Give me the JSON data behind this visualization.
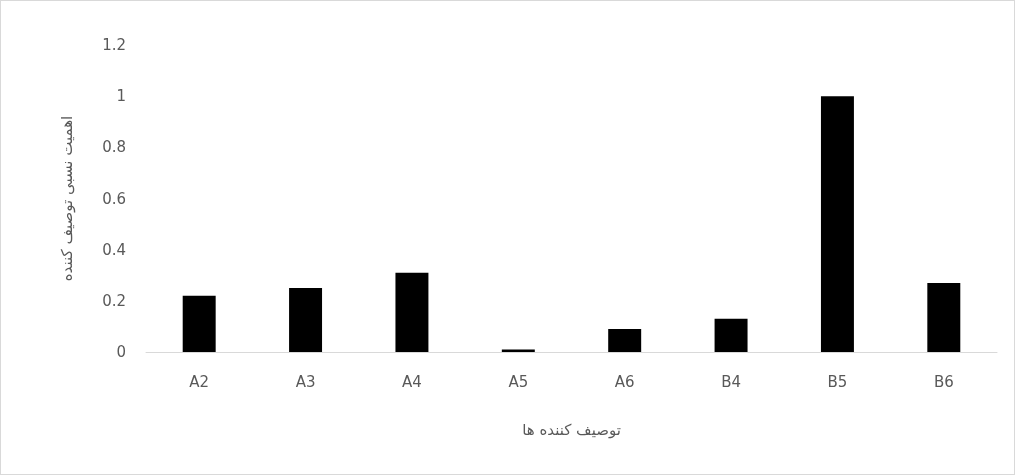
{
  "chart_data": {
    "type": "bar",
    "xlabel": "توصیف کننده ها",
    "ylabel": "اهمیت نسبی توصیف کننده",
    "categories": [
      "A2",
      "A3",
      "A4",
      "A5",
      "A6",
      "B4",
      "B5",
      "B6"
    ],
    "values": [
      0.22,
      0.25,
      0.31,
      0.01,
      0.09,
      0.13,
      1,
      0.27
    ],
    "color": "#000000",
    "ylim": [
      0,
      1.2
    ],
    "yticks": [
      0,
      0.2,
      0.4,
      0.6,
      0.8,
      1,
      1.2
    ]
  }
}
